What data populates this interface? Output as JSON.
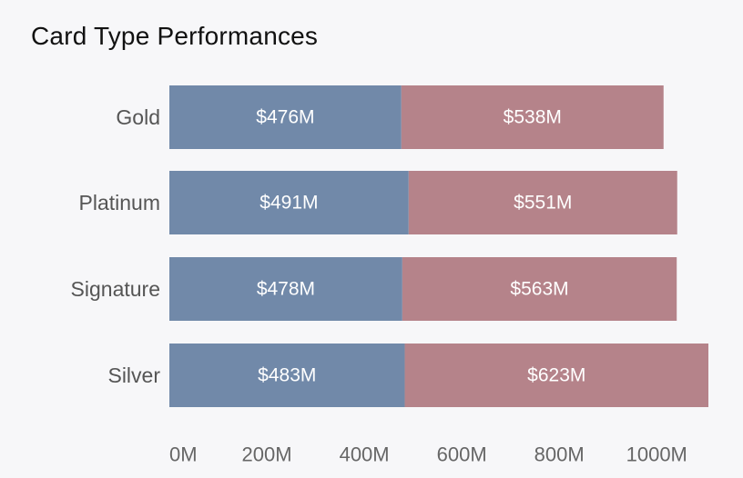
{
  "chart_data": {
    "type": "bar",
    "orientation": "horizontal",
    "stacked": true,
    "title": "Card Type Performances",
    "categories": [
      "Gold",
      "Platinum",
      "Signature",
      "Silver"
    ],
    "series": [
      {
        "values": [
          476,
          491,
          478,
          483
        ],
        "labels": [
          "$476M",
          "$491M",
          "$478M",
          "$483M"
        ],
        "color": "#7189a9"
      },
      {
        "values": [
          538,
          551,
          563,
          623
        ],
        "labels": [
          "$538M",
          "$551M",
          "$563M",
          "$623M"
        ],
        "color": "#b5838a"
      }
    ],
    "xlim": [
      0,
      1106
    ],
    "xticks": [
      0,
      200,
      400,
      600,
      800,
      1000
    ],
    "xtick_labels": [
      "0M",
      "200M",
      "400M",
      "600M",
      "800M",
      "1000M"
    ],
    "grid": false,
    "legend": "none"
  }
}
